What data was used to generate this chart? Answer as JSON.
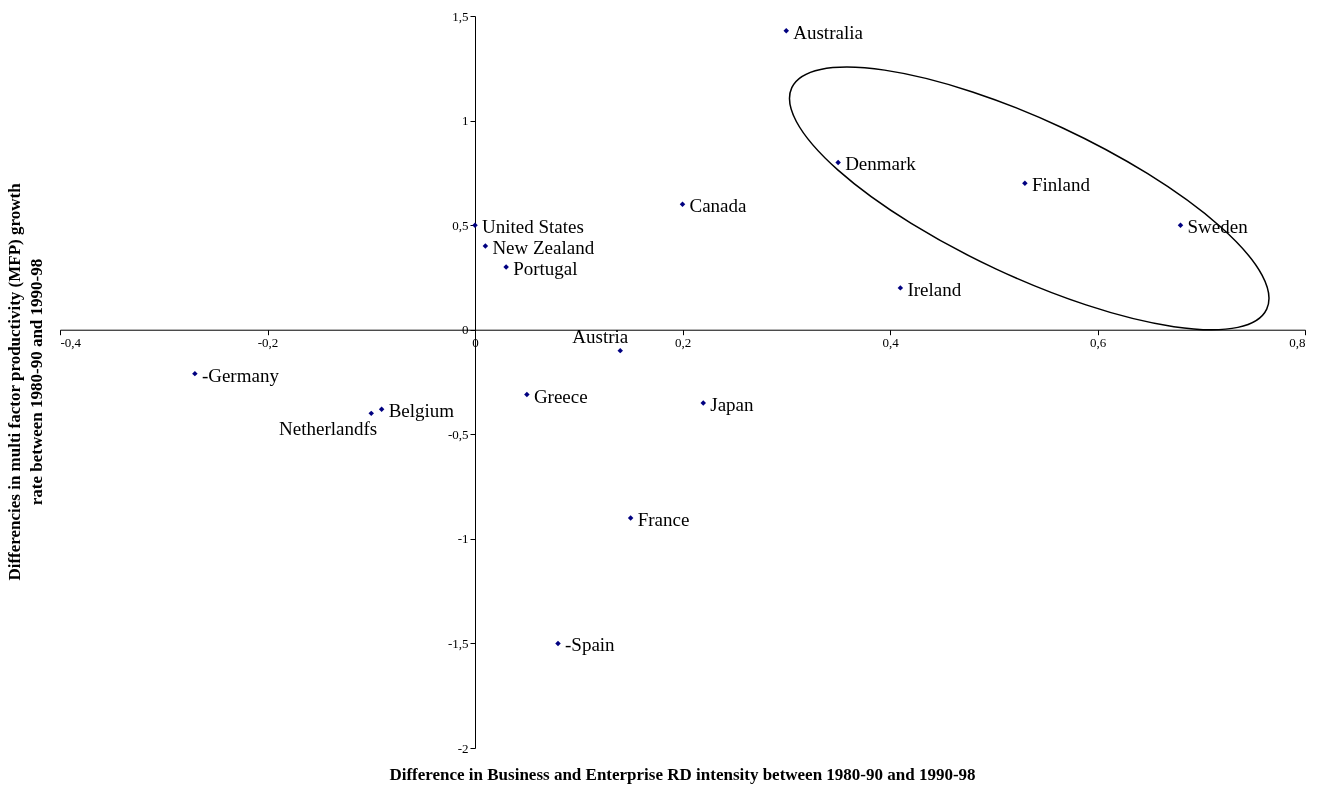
{
  "chart_data": {
    "type": "scatter",
    "xlabel": "Difference in Business and Enterprise RD intensity between 1980-90 and 1990-98",
    "ylabel": "Differencies in multi factor productivity (MFP) growth rate between 1980-90 and 1990-98",
    "xlim": [
      -0.4,
      0.8
    ],
    "ylim": [
      -2,
      1.5
    ],
    "xticks": [
      {
        "value": -0.4,
        "label": "-0,4"
      },
      {
        "value": -0.2,
        "label": "-0,2"
      },
      0,
      {
        "value": 0.2,
        "label": "0,2"
      },
      {
        "value": 0.4,
        "label": "0,4"
      },
      {
        "value": 0.6,
        "label": "0,6"
      },
      {
        "value": 0.8,
        "label": "0,8"
      }
    ],
    "yticks": [
      -2,
      {
        "value": -1.5,
        "label": "-1,5"
      },
      -1,
      {
        "value": -0.5,
        "label": "-0,5"
      },
      0,
      {
        "value": 0.5,
        "label": "0,5"
      },
      1,
      {
        "value": 1.5,
        "label": "1,5"
      }
    ],
    "grid": false,
    "marker": "diamond",
    "series": [
      {
        "name": "Australia",
        "color": "#000080",
        "x": [
          0.3
        ],
        "values": [
          1.43
        ]
      },
      {
        "name": "Denmark",
        "color": "#000080",
        "x": [
          0.35
        ],
        "values": [
          0.8
        ]
      },
      {
        "name": "Finland",
        "color": "#000080",
        "x": [
          0.53
        ],
        "values": [
          0.7
        ]
      },
      {
        "name": "Sweden",
        "color": "#000080",
        "x": [
          0.68
        ],
        "values": [
          0.5
        ]
      },
      {
        "name": "Ireland",
        "color": "#000080",
        "x": [
          0.41
        ],
        "values": [
          0.2
        ]
      },
      {
        "name": "Canada",
        "color": "#000080",
        "x": [
          0.2
        ],
        "values": [
          0.6
        ]
      },
      {
        "name": "United States",
        "color": "#000080",
        "x": [
          0.0
        ],
        "values": [
          0.5
        ]
      },
      {
        "name": "New Zealand",
        "color": "#000080",
        "x": [
          0.01
        ],
        "values": [
          0.4
        ]
      },
      {
        "name": "Portugal",
        "color": "#000080",
        "x": [
          0.03
        ],
        "values": [
          0.3
        ]
      },
      {
        "name": "Austria",
        "color": "#000080",
        "x": [
          0.14
        ],
        "values": [
          -0.1
        ]
      },
      {
        "name": "-Germany",
        "color": "#000080",
        "x": [
          -0.27
        ],
        "values": [
          -0.21
        ]
      },
      {
        "name": "Belgium",
        "color": "#000080",
        "x": [
          -0.09
        ],
        "values": [
          -0.38
        ]
      },
      {
        "name": "Greece",
        "color": "#000080",
        "x": [
          0.05
        ],
        "values": [
          -0.31
        ]
      },
      {
        "name": "Netherlandfs",
        "color": "#000080",
        "x": [
          -0.1
        ],
        "values": [
          -0.4
        ]
      },
      {
        "name": "Japan",
        "color": "#000080",
        "x": [
          0.22
        ],
        "values": [
          -0.35
        ]
      },
      {
        "name": "France",
        "color": "#000080",
        "x": [
          0.15
        ],
        "values": [
          -0.9
        ]
      },
      {
        "name": "-Spain",
        "color": "#000080",
        "x": [
          0.08
        ],
        "values": [
          -1.5
        ]
      }
    ]
  }
}
